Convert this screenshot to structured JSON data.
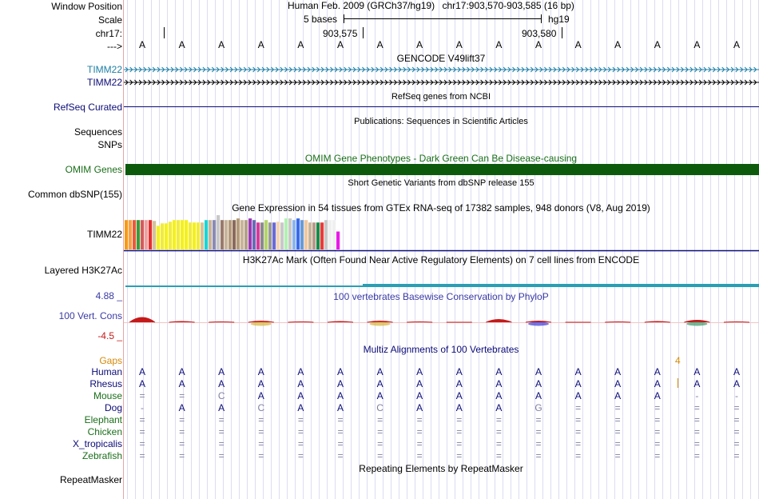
{
  "colors": {
    "gencode": "#1d7fa6",
    "navy": "#0c0c78",
    "omim": "#0d5a0d",
    "green_text": "#1a6e1a",
    "phylop_text": "#3a3aa6",
    "phylop_red": "#c41a1a",
    "gaps": "#d48a0a",
    "h3k27ac": "#2a9fb3",
    "gray": "#8080a0"
  },
  "header": {
    "window_position_label": "Window Position",
    "scale_label": "Scale",
    "chrom_label": "chr17:",
    "strand_label": "--->",
    "assembly": "Human Feb. 2009 (GRCh37/hg19)",
    "position": "chr17:903,570-903,585 (16 bp)",
    "scale_text": "5 bases",
    "scale_db": "hg19",
    "tick1": "903,575",
    "tick2": "903,580"
  },
  "sequence": {
    "bases": [
      "A",
      "A",
      "A",
      "A",
      "A",
      "A",
      "A",
      "A",
      "A",
      "A",
      "A",
      "A",
      "A",
      "A",
      "A",
      "A"
    ]
  },
  "gencode": {
    "title": "GENCODE V49lift37",
    "track1_label": "TIMM22",
    "track2_label": "TIMM22"
  },
  "refseq": {
    "title": "RefSeq genes from NCBI",
    "label": "RefSeq Curated"
  },
  "publications": {
    "title": "Publications: Sequences in Scientific Articles",
    "label1": "Sequences",
    "label2": "SNPs"
  },
  "omim": {
    "title": "OMIM Gene Phenotypes - Dark Green Can Be Disease-causing",
    "label": "OMIM Genes"
  },
  "dbsnp": {
    "title": "Short Genetic Variants from dbSNP release 155",
    "label": "Common dbSNP(155)"
  },
  "gtex": {
    "title": "Gene Expression in 54 tissues from GTEx RNA-seq of 17382 samples, 948 donors (V8, Aug 2019)",
    "label": "TIMM22"
  },
  "h3k27ac": {
    "title": "H3K27Ac Mark (Often Found Near Active Regulatory Elements) on 7 cell lines from ENCODE",
    "label": "Layered H3K27Ac"
  },
  "phylop": {
    "title": "100 vertebrates Basewise Conservation by PhyloP",
    "label": "100 Vert. Cons",
    "max_label": "4.88 _",
    "min_label": "-4.5 _"
  },
  "multiz": {
    "title": "Multiz Alignments of 100 Vertebrates",
    "gaps_label": "Gaps",
    "gap_count": "4",
    "species": [
      {
        "name": "Human",
        "row": [
          "A",
          "A",
          "A",
          "A",
          "A",
          "A",
          "A",
          "A",
          "A",
          "A",
          "A",
          "A",
          "A",
          "A",
          "A",
          "A"
        ]
      },
      {
        "name": "Rhesus",
        "row": [
          "A",
          "A",
          "A",
          "A",
          "A",
          "A",
          "A",
          "A",
          "A",
          "A",
          "A",
          "A",
          "A",
          "A",
          "A",
          "A"
        ]
      },
      {
        "name": "Mouse",
        "row": [
          "=",
          "=",
          "C",
          "A",
          "A",
          "A",
          "A",
          "A",
          "A",
          "A",
          "A",
          "A",
          "A",
          "A",
          "-",
          "-"
        ]
      },
      {
        "name": "Dog",
        "row": [
          "-",
          "A",
          "A",
          "C",
          "A",
          "A",
          "C",
          "A",
          "A",
          "A",
          "G",
          "=",
          "=",
          "=",
          "=",
          "="
        ]
      },
      {
        "name": "Elephant",
        "row": [
          "=",
          "=",
          "=",
          "=",
          "=",
          "=",
          "=",
          "=",
          "=",
          "=",
          "=",
          "=",
          "=",
          "=",
          "=",
          "="
        ]
      },
      {
        "name": "Chicken",
        "row": [
          "=",
          "=",
          "=",
          "=",
          "=",
          "=",
          "=",
          "=",
          "=",
          "=",
          "=",
          "=",
          "=",
          "=",
          "=",
          "="
        ]
      },
      {
        "name": "X_tropicalis",
        "row": [
          "=",
          "=",
          "=",
          "=",
          "=",
          "=",
          "=",
          "=",
          "=",
          "=",
          "=",
          "=",
          "=",
          "=",
          "=",
          "="
        ]
      },
      {
        "name": "Zebrafish",
        "row": [
          "=",
          "=",
          "=",
          "=",
          "=",
          "=",
          "=",
          "=",
          "=",
          "=",
          "=",
          "=",
          "=",
          "=",
          "=",
          "="
        ]
      }
    ]
  },
  "repeatmasker": {
    "title": "Repeating Elements by RepeatMasker",
    "label": "RepeatMasker"
  },
  "chart_data": {
    "type": "bar",
    "title": "Gene Expression in 54 tissues from GTEx RNA-seq of 17382 samples, 948 donors (V8, Aug 2019)",
    "xlabel": "",
    "ylabel": "",
    "ylim": [
      0,
      45
    ],
    "values": [
      36,
      36,
      36,
      36,
      36,
      36,
      36,
      35,
      29,
      32,
      32,
      34,
      36,
      36,
      36,
      36,
      33,
      33,
      33,
      33,
      36,
      36,
      36,
      42,
      36,
      36,
      36,
      36,
      38,
      36,
      36,
      38,
      36,
      33,
      33,
      36,
      33,
      33,
      34,
      33,
      38,
      38,
      36,
      38,
      36,
      36,
      33,
      33,
      33,
      33,
      36,
      36,
      36,
      22
    ],
    "colors": [
      "#f59a1a",
      "#f5a04a",
      "#e85a3a",
      "#3a9a3a",
      "#d45a5a",
      "#f0a0a0",
      "#e53030",
      "#d4c29a",
      "#f5f01a",
      "#f0eb3a",
      "#f5f01a",
      "#f0eb3a",
      "#f5f01a",
      "#f0eb3a",
      "#f5f01a",
      "#f5f01a",
      "#f0eb3a",
      "#f5f01a",
      "#f0eb3a",
      "#d4c29a",
      "#1ad4d4",
      "#c8b49a",
      "#8a8ab4",
      "#c8c8c8",
      "#9a7a6a",
      "#c8b49a",
      "#b49a7a",
      "#8a6a5a",
      "#b49a7a",
      "#c8b49a",
      "#b4a08a",
      "#9a3ab4",
      "#6a6ab4",
      "#d43a9a",
      "#8a8a8a",
      "#b4d46a",
      "#9a9a9a",
      "#6a6ad4",
      "#f5d4b4",
      "#c8c8c8",
      "#b4f0b4",
      "#c8c8c8",
      "#8ab4f0",
      "#3a6ae8",
      "#6a9ad4",
      "#f0c8a0",
      "#c8b49a",
      "#b49a8a",
      "#1a8a4a",
      "#e83a3a",
      "#c8c8c8",
      "#f0f0f0",
      "#f0f0f0",
      "#e81ae8"
    ]
  }
}
